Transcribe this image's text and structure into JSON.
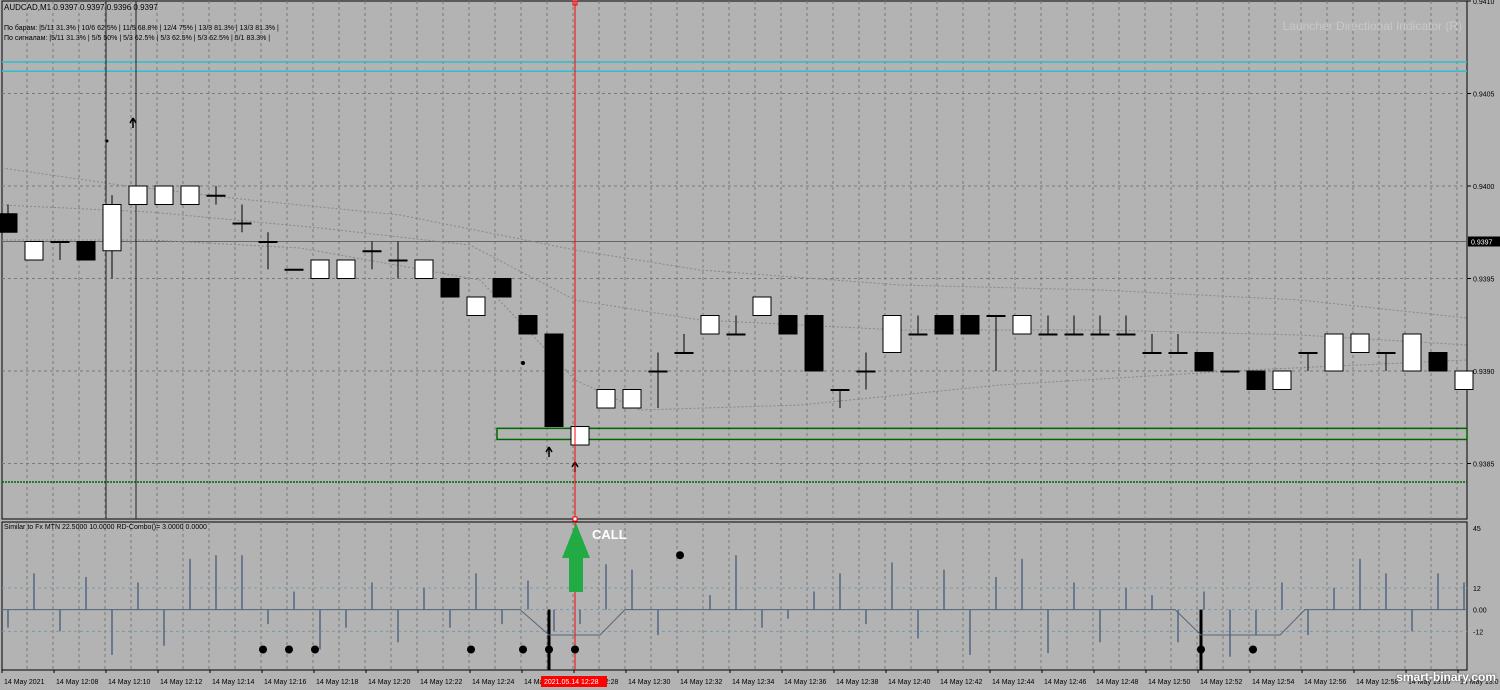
{
  "chart_header": {
    "symbol_line": "AUDCAD,M1  0.9397 0.9397 0.9396 0.9397",
    "stats_bars": "По барам:      |5/11 31.3%  |  10/6 62.5%  |  11/5 68.8%  |  12/4 75%  |  13/3 81.3%  |  13/3 81.3%  |",
    "stats_signals": "По сигналам: |5/11 31.3%  |  5/5 50%  |  5/3 62.5%  |  5/3 62.5%  |  5/3 62.5%  |  5/1 83.3%  |"
  },
  "indicator_name": "Launcher Directional Indicator (R)",
  "sub_header": "Similar to Fx MTN  22.5000 10.0000   RD-Combo()=   3.0000 0.0000",
  "call_label": "CALL",
  "brand": "smart-binary.com",
  "price_axis": [
    "0.9410",
    "0.9405",
    "0.9400",
    "0.9395",
    "0.9390",
    "0.9385"
  ],
  "current_price": "0.9397",
  "osc_axis": [
    "45",
    "12",
    "0.00",
    "-12"
  ],
  "time_axis": [
    "14 May 2021",
    "14 May 12:08",
    "14 May 12:10",
    "14 May 12:12",
    "14 May 12:14",
    "14 May 12:16",
    "14 May 12:18",
    "14 May 12:20",
    "14 May 12:22",
    "14 May 12:24",
    "14 May 12:26",
    "14 May 12:28",
    "14 May 12:30",
    "14 May 12:32",
    "14 May 12:34",
    "14 May 12:36",
    "14 May 12:38",
    "14 May 12:40",
    "14 May 12:42",
    "14 May 12:44",
    "14 May 12:46",
    "14 May 12:48",
    "14 May 12:50",
    "14 May 12:52",
    "14 May 12:54",
    "14 May 12:56",
    "14 May 12:58",
    "14 May 13:00",
    "14 May 13:0"
  ],
  "cursor_time": "2021.05.14 12:28",
  "colors": {
    "background": "#b3b3b3",
    "grid": "#7a7a7a",
    "cyan_level": "#29c0d0",
    "green_zone": "#006400",
    "cursor": "#ff0000",
    "call_arrow": "#22aa44",
    "osc_bar": "#6a7a8c"
  },
  "chart_data": {
    "type": "candlestick",
    "symbol": "AUDCAD,M1",
    "ylim": [
      0.9382,
      0.941
    ],
    "candles": [
      {
        "o": 0.93985,
        "h": 0.9399,
        "l": 0.93975,
        "c": 0.93975
      },
      {
        "o": 0.9396,
        "h": 0.9397,
        "l": 0.9396,
        "c": 0.9397
      },
      {
        "o": 0.9397,
        "h": 0.9397,
        "l": 0.9396,
        "c": 0.9397
      },
      {
        "o": 0.9397,
        "h": 0.9397,
        "l": 0.9396,
        "c": 0.9396
      },
      {
        "o": 0.93965,
        "h": 0.93995,
        "l": 0.9395,
        "c": 0.9399
      },
      {
        "o": 0.9399,
        "h": 0.94,
        "l": 0.9399,
        "c": 0.94
      },
      {
        "o": 0.9399,
        "h": 0.94,
        "l": 0.9399,
        "c": 0.94
      },
      {
        "o": 0.9399,
        "h": 0.94,
        "l": 0.9399,
        "c": 0.94
      },
      {
        "o": 0.93995,
        "h": 0.94,
        "l": 0.9399,
        "c": 0.93995
      },
      {
        "o": 0.9398,
        "h": 0.9399,
        "l": 0.93975,
        "c": 0.9398
      },
      {
        "o": 0.9397,
        "h": 0.93975,
        "l": 0.93955,
        "c": 0.9397
      },
      {
        "o": 0.93955,
        "h": 0.93955,
        "l": 0.93955,
        "c": 0.93955
      },
      {
        "o": 0.9395,
        "h": 0.9396,
        "l": 0.9395,
        "c": 0.9396
      },
      {
        "o": 0.9395,
        "h": 0.9396,
        "l": 0.9395,
        "c": 0.9396
      },
      {
        "o": 0.93965,
        "h": 0.9397,
        "l": 0.93955,
        "c": 0.93965
      },
      {
        "o": 0.9396,
        "h": 0.9397,
        "l": 0.9395,
        "c": 0.9396
      },
      {
        "o": 0.9395,
        "h": 0.9396,
        "l": 0.9395,
        "c": 0.9396
      },
      {
        "o": 0.9395,
        "h": 0.9395,
        "l": 0.9394,
        "c": 0.9394
      },
      {
        "o": 0.9393,
        "h": 0.9394,
        "l": 0.9393,
        "c": 0.9394
      },
      {
        "o": 0.9395,
        "h": 0.9395,
        "l": 0.9394,
        "c": 0.9394
      },
      {
        "o": 0.9393,
        "h": 0.9393,
        "l": 0.9392,
        "c": 0.9392
      },
      {
        "o": 0.9392,
        "h": 0.9392,
        "l": 0.9387,
        "c": 0.9387
      },
      {
        "o": 0.9386,
        "h": 0.9387,
        "l": 0.9386,
        "c": 0.9387
      },
      {
        "o": 0.9388,
        "h": 0.9389,
        "l": 0.9388,
        "c": 0.9389
      },
      {
        "o": 0.9388,
        "h": 0.9389,
        "l": 0.9388,
        "c": 0.9389
      },
      {
        "o": 0.939,
        "h": 0.9391,
        "l": 0.9388,
        "c": 0.939
      },
      {
        "o": 0.9391,
        "h": 0.9392,
        "l": 0.9391,
        "c": 0.9391
      },
      {
        "o": 0.9392,
        "h": 0.9393,
        "l": 0.9392,
        "c": 0.9393
      },
      {
        "o": 0.9392,
        "h": 0.9393,
        "l": 0.9392,
        "c": 0.9392
      },
      {
        "o": 0.9393,
        "h": 0.9394,
        "l": 0.9393,
        "c": 0.9394
      },
      {
        "o": 0.9393,
        "h": 0.9393,
        "l": 0.9392,
        "c": 0.9392
      },
      {
        "o": 0.9393,
        "h": 0.9393,
        "l": 0.939,
        "c": 0.939
      },
      {
        "o": 0.9389,
        "h": 0.9389,
        "l": 0.9388,
        "c": 0.9389
      },
      {
        "o": 0.939,
        "h": 0.9391,
        "l": 0.9389,
        "c": 0.939
      },
      {
        "o": 0.9391,
        "h": 0.9393,
        "l": 0.9391,
        "c": 0.9393
      },
      {
        "o": 0.9392,
        "h": 0.9393,
        "l": 0.9392,
        "c": 0.9392
      },
      {
        "o": 0.9393,
        "h": 0.9393,
        "l": 0.9392,
        "c": 0.9392
      },
      {
        "o": 0.9393,
        "h": 0.9393,
        "l": 0.9392,
        "c": 0.9392
      },
      {
        "o": 0.9393,
        "h": 0.9393,
        "l": 0.939,
        "c": 0.9393
      },
      {
        "o": 0.9392,
        "h": 0.9393,
        "l": 0.9392,
        "c": 0.9393
      },
      {
        "o": 0.9392,
        "h": 0.9393,
        "l": 0.9392,
        "c": 0.9392
      },
      {
        "o": 0.9392,
        "h": 0.9393,
        "l": 0.9392,
        "c": 0.9392
      },
      {
        "o": 0.9392,
        "h": 0.9393,
        "l": 0.9392,
        "c": 0.9392
      },
      {
        "o": 0.9392,
        "h": 0.9393,
        "l": 0.9392,
        "c": 0.9392
      },
      {
        "o": 0.9391,
        "h": 0.9392,
        "l": 0.9391,
        "c": 0.9391
      },
      {
        "o": 0.9391,
        "h": 0.9392,
        "l": 0.9391,
        "c": 0.9391
      },
      {
        "o": 0.9391,
        "h": 0.9391,
        "l": 0.939,
        "c": 0.939
      },
      {
        "o": 0.939,
        "h": 0.939,
        "l": 0.939,
        "c": 0.939
      },
      {
        "o": 0.939,
        "h": 0.939,
        "l": 0.9389,
        "c": 0.9389
      },
      {
        "o": 0.9389,
        "h": 0.939,
        "l": 0.9389,
        "c": 0.939
      },
      {
        "o": 0.9391,
        "h": 0.9391,
        "l": 0.939,
        "c": 0.9391
      },
      {
        "o": 0.939,
        "h": 0.9392,
        "l": 0.939,
        "c": 0.9392
      },
      {
        "o": 0.9391,
        "h": 0.9392,
        "l": 0.9391,
        "c": 0.9392
      },
      {
        "o": 0.9391,
        "h": 0.9391,
        "l": 0.939,
        "c": 0.9391
      },
      {
        "o": 0.939,
        "h": 0.9392,
        "l": 0.939,
        "c": 0.9392
      },
      {
        "o": 0.9391,
        "h": 0.9391,
        "l": 0.939,
        "c": 0.939
      },
      {
        "o": 0.9389,
        "h": 0.939,
        "l": 0.9389,
        "c": 0.939
      }
    ],
    "levels": {
      "cyan": [
        0.94067,
        0.94062
      ],
      "zone": [
        0.93869,
        0.93863
      ],
      "green_dotted": 0.9384
    },
    "oscillator": {
      "ylim": [
        -30,
        45
      ],
      "ticks": [
        45,
        12,
        0,
        -12
      ]
    }
  }
}
